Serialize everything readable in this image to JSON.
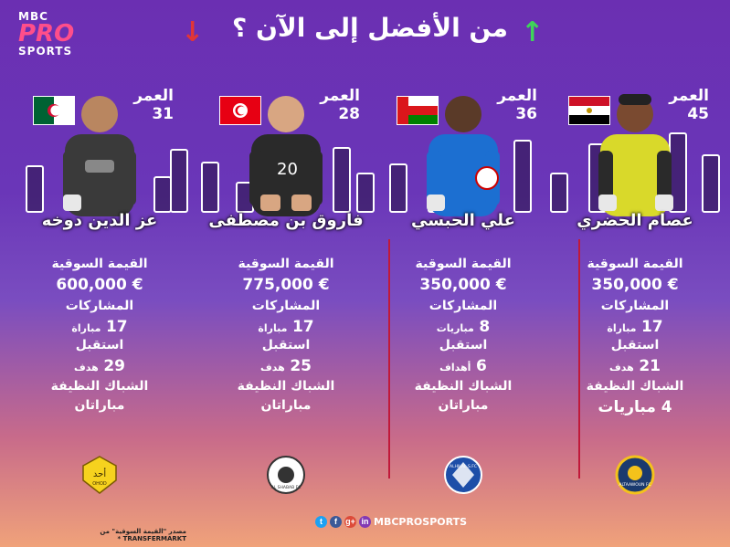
{
  "brand": {
    "line1": "MBC",
    "line2": "PRO",
    "line3": "SPORTS"
  },
  "title": "من الأفضل إلى الآن ؟",
  "labels": {
    "age": "العمر",
    "market_value": "القيمة السوقية",
    "appearances": "المشاركات",
    "conceded": "استقبل",
    "clean_sheets": "الشباك النظيفة"
  },
  "players": [
    {
      "name": "عصام الحضري",
      "age": "45",
      "country": "egypt-flag",
      "market_value": "€ 350,000",
      "appearances_value": "17",
      "appearances_unit": "مباراة",
      "conceded_value": "21",
      "conceded_unit": "هدف",
      "clean_sheets": "4 مباريات",
      "club_icon": "taawoun-badge"
    },
    {
      "name": "علي الحبسي",
      "age": "36",
      "country": "oman-flag",
      "market_value": "€ 350,000",
      "appearances_value": "8",
      "appearances_unit": "مباريات",
      "conceded_value": "6",
      "conceded_unit": "أهداف",
      "clean_sheets": "مباراتان",
      "club_icon": "al-hilal-badge"
    },
    {
      "name": "فاروق بن مصطفى",
      "age": "28",
      "country": "tunisia-flag",
      "market_value": "€ 775,000",
      "appearances_value": "17",
      "appearances_unit": "مباراة",
      "conceded_value": "25",
      "conceded_unit": "هدف",
      "clean_sheets": "مباراتان",
      "club_icon": "al-shabab-badge"
    },
    {
      "name": "عز الدين دوخه",
      "age": "31",
      "country": "algeria-flag",
      "market_value": "€ 600,000",
      "appearances_value": "17",
      "appearances_unit": "مباراة",
      "conceded_value": "29",
      "conceded_unit": "هدف",
      "clean_sheets": "مباراتان",
      "club_icon": "ohod-badge"
    }
  ],
  "badges": {
    "taawoun": "ALTAAWOUN FC",
    "hilal": "ALHILAL S.FC",
    "shabab": "AL SHABAB FC",
    "ohod_ar": "أحد",
    "ohod_en": "OHOD"
  },
  "footer": {
    "handle": "MBCPROSPORTS",
    "twitter": "t",
    "facebook": "f",
    "gplus": "g+",
    "instagram": "in"
  },
  "source": "مصدر \"القيمة السوقية\" من TRANSFERMARKT *",
  "colors": {
    "background_top": "#6b2fb2",
    "background_bottom": "#f0a27a",
    "divider": "#c0193a",
    "arrow_up": "#3fd45a",
    "arrow_down": "#e23636"
  }
}
